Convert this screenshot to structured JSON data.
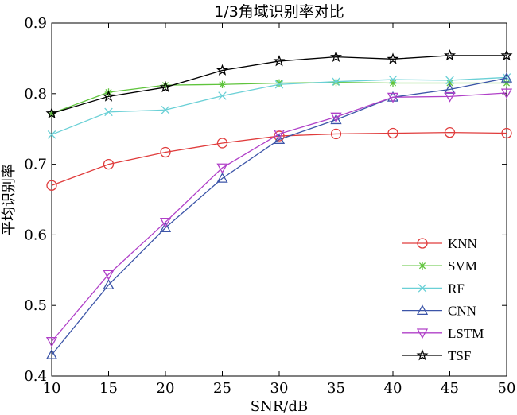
{
  "chart_data": {
    "type": "line",
    "title": "1/3角域识别率对比",
    "xlabel": "SNR/dB",
    "ylabel": "平均识别率",
    "xlim": [
      10,
      50
    ],
    "ylim": [
      0.4,
      0.9
    ],
    "x": [
      10,
      15,
      20,
      25,
      30,
      35,
      40,
      45,
      50
    ],
    "x_ticks": [
      "10",
      "15",
      "20",
      "25",
      "30",
      "35",
      "40",
      "45",
      "50"
    ],
    "y_ticks": [
      "0.4",
      "0.5",
      "0.6",
      "0.7",
      "0.8",
      "0.9"
    ],
    "grid": false,
    "legend_position": "bottom-right",
    "series": [
      {
        "name": "KNN",
        "color": "#e03c3c",
        "marker": "circle",
        "values": [
          0.67,
          0.7,
          0.717,
          0.73,
          0.74,
          0.743,
          0.744,
          0.745,
          0.744
        ]
      },
      {
        "name": "SVM",
        "color": "#5fc43c",
        "marker": "asterisk",
        "values": [
          0.772,
          0.802,
          0.812,
          0.813,
          0.815,
          0.816,
          0.815,
          0.815,
          0.815
        ]
      },
      {
        "name": "RF",
        "color": "#6ad0d6",
        "marker": "x",
        "values": [
          0.742,
          0.774,
          0.777,
          0.797,
          0.813,
          0.817,
          0.82,
          0.819,
          0.823
        ]
      },
      {
        "name": "CNN",
        "color": "#3c55a8",
        "marker": "triangle-up",
        "values": [
          0.43,
          0.529,
          0.61,
          0.68,
          0.735,
          0.763,
          0.795,
          0.806,
          0.822
        ]
      },
      {
        "name": "LSTM",
        "color": "#b040c8",
        "marker": "triangle-down",
        "values": [
          0.449,
          0.544,
          0.618,
          0.695,
          0.743,
          0.767,
          0.795,
          0.796,
          0.801
        ]
      },
      {
        "name": "TSF",
        "color": "#000000",
        "marker": "star",
        "values": [
          0.772,
          0.796,
          0.809,
          0.833,
          0.846,
          0.852,
          0.849,
          0.854,
          0.854
        ]
      }
    ]
  }
}
